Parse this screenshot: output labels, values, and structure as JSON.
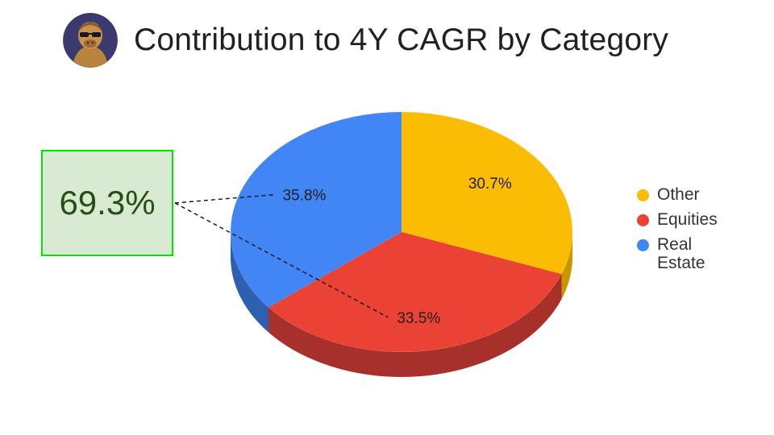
{
  "chart_data": {
    "type": "pie",
    "title": "Contribution to 4Y CAGR by Category",
    "start_angle_deg": 0,
    "direction": "clockwise",
    "three_d": true,
    "slices": [
      {
        "label": "Other",
        "value": 30.7,
        "display": "30.7%",
        "color": "#fbbc04",
        "side_color": "#c89600"
      },
      {
        "label": "Equities",
        "value": 33.5,
        "display": "33.5%",
        "color": "#ea4335",
        "side_color": "#a8302a"
      },
      {
        "label": "Real Estate",
        "value": 35.8,
        "display": "35.8%",
        "color": "#4285f4",
        "side_color": "#2f5fb0"
      }
    ],
    "legend": {
      "position": "right",
      "items": [
        "Other",
        "Equities",
        "Real Estate"
      ]
    },
    "annotation": {
      "text": "69.3%",
      "links_to": [
        "Real Estate",
        "Equities"
      ]
    }
  },
  "header": {
    "title": "Contribution to 4Y CAGR by Category",
    "avatar": "gorilla-avatar-icon"
  },
  "callout": {
    "text": "69.3%",
    "bg_color": "#d9ead3",
    "border_color": "#00e600",
    "text_color": "#274e13"
  }
}
